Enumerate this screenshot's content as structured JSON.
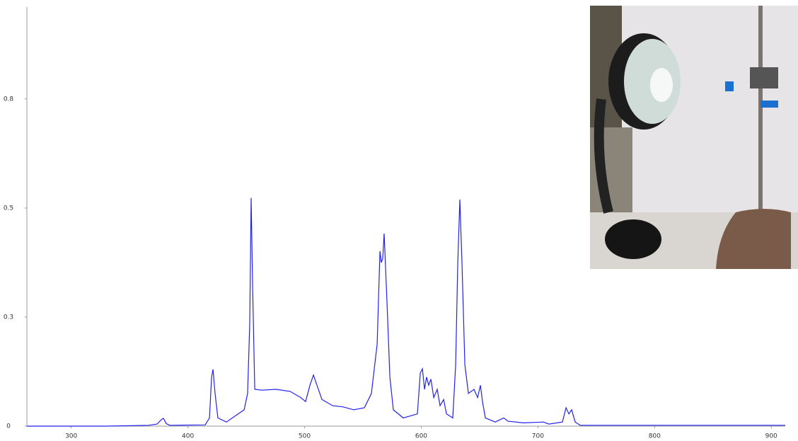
{
  "chart_data": {
    "type": "line",
    "color": "#2222ee",
    "x": [
      262.0,
      329.9,
      366.3,
      373.6,
      377.2,
      379.0,
      381.5,
      384.5,
      414.8,
      418.5,
      420.3,
      421.5,
      423.3,
      425.7,
      433.0,
      448.2,
      451.2,
      453.0,
      454.2,
      455.4,
      457.3,
      463.3,
      475.5,
      487.6,
      496.7,
      500.9,
      504.6,
      507.6,
      510.6,
      514.9,
      524.0,
      533.0,
      542.2,
      551.3,
      557.3,
      562.2,
      564.6,
      565.8,
      567.0,
      568.2,
      570.7,
      573.1,
      576.1,
      584.6,
      596.7,
      599.2,
      601.0,
      602.8,
      604.6,
      606.4,
      608.3,
      610.7,
      613.7,
      616.1,
      619.2,
      621.6,
      627.0,
      629.5,
      631.3,
      633.1,
      634.9,
      637.4,
      640.4,
      645.2,
      648.3,
      650.7,
      652.5,
      655.0,
      663.4,
      670.7,
      674.4,
      687.7,
      704.7,
      709.5,
      721.0,
      724.1,
      726.5,
      728.9,
      732.0,
      736.2,
      912.0
    ],
    "values": [
      0,
      0,
      0.002,
      0.005,
      0.016,
      0.019,
      0.006,
      0.002,
      0.003,
      0.02,
      0.12,
      0.139,
      0.08,
      0.02,
      0.01,
      0.04,
      0.08,
      0.25,
      0.558,
      0.35,
      0.09,
      0.088,
      0.09,
      0.085,
      0.07,
      0.06,
      0.1,
      0.125,
      0.1,
      0.065,
      0.05,
      0.047,
      0.04,
      0.045,
      0.08,
      0.2,
      0.428,
      0.4,
      0.41,
      0.471,
      0.3,
      0.12,
      0.04,
      0.02,
      0.03,
      0.13,
      0.14,
      0.09,
      0.12,
      0.1,
      0.115,
      0.07,
      0.09,
      0.05,
      0.065,
      0.03,
      0.02,
      0.15,
      0.4,
      0.554,
      0.4,
      0.15,
      0.08,
      0.09,
      0.07,
      0.1,
      0.06,
      0.02,
      0.01,
      0.02,
      0.012,
      0.008,
      0.01,
      0.005,
      0.01,
      0.045,
      0.03,
      0.04,
      0.01,
      0.002,
      0.002
    ],
    "xlim": [
      262,
      912
    ],
    "xticks": [
      300,
      400,
      500,
      600,
      700,
      800,
      900
    ],
    "ylim": [
      0,
      1.042
    ],
    "yticks": [
      0,
      {
        "value": 0.2667,
        "label": "0.3"
      },
      {
        "value": 0.5333,
        "label": "0.5"
      },
      0.8
    ]
  }
}
